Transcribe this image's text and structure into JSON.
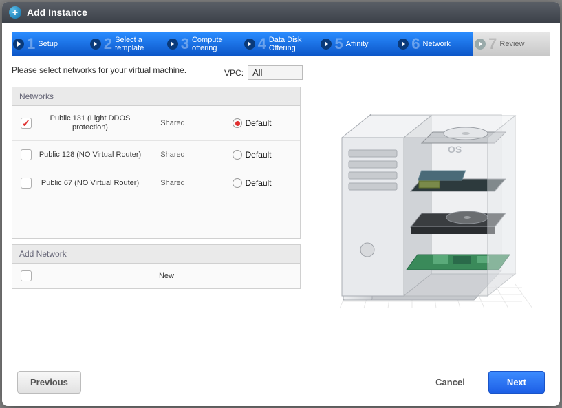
{
  "dialog": {
    "title": "Add Instance"
  },
  "steps": [
    {
      "num": "1",
      "label": "Setup",
      "state": "done"
    },
    {
      "num": "2",
      "label": "Select a template",
      "state": "done"
    },
    {
      "num": "3",
      "label": "Compute offering",
      "state": "done"
    },
    {
      "num": "4",
      "label": "Data Disk Offering",
      "state": "done"
    },
    {
      "num": "5",
      "label": "Affinity",
      "state": "done"
    },
    {
      "num": "6",
      "label": "Network",
      "state": "active"
    },
    {
      "num": "7",
      "label": "Review",
      "state": "future"
    }
  ],
  "instruction": "Please select networks for your virtual machine.",
  "vpc": {
    "label": "VPC:",
    "selected": "All"
  },
  "panels": {
    "networks": {
      "header": "Networks",
      "default_label": "Default",
      "rows": [
        {
          "checked": true,
          "name": "Public 131 (Light DDOS protection)",
          "type": "Shared",
          "default": true
        },
        {
          "checked": false,
          "name": "Public 128 (NO Virtual Router)",
          "type": "Shared",
          "default": false
        },
        {
          "checked": false,
          "name": "Public 67 (NO Virtual Router)",
          "type": "Shared",
          "default": false
        }
      ]
    },
    "add_network": {
      "header": "Add Network",
      "row": {
        "checked": false,
        "name": "New"
      }
    }
  },
  "footer": {
    "previous": "Previous",
    "cancel": "Cancel",
    "next": "Next"
  },
  "illustration": {
    "case_color": "#dcdfe3",
    "case_stroke": "#a8acb2",
    "shadow_color": "#d0d0d0",
    "os_label": "OS",
    "os_label_color": "#b8bcc2"
  }
}
